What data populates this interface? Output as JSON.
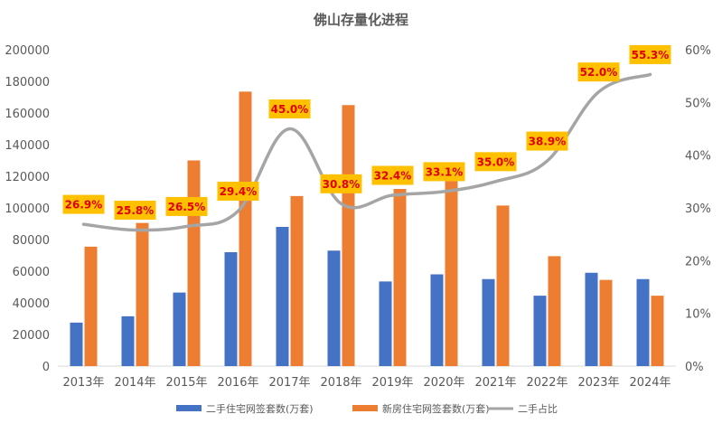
{
  "chart_data": {
    "type": "bar",
    "title": "佛山存量化进程",
    "categories": [
      "2013年",
      "2014年",
      "2015年",
      "2016年",
      "2017年",
      "2018年",
      "2019年",
      "2020年",
      "2021年",
      "2022年",
      "2023年",
      "2024年"
    ],
    "series": [
      {
        "name": "二手住宅网签套数(万套)",
        "type": "bar",
        "axis": "left",
        "color": "#4472c4",
        "values": [
          27500,
          31500,
          46500,
          72000,
          88000,
          73000,
          53500,
          58000,
          55000,
          44500,
          59000,
          55000
        ]
      },
      {
        "name": "新房住宅网签套数(万套)",
        "type": "bar",
        "axis": "left",
        "color": "#ed7d31",
        "values": [
          75500,
          90500,
          130000,
          173500,
          107500,
          165000,
          112000,
          117000,
          101500,
          69500,
          54500,
          44500
        ]
      },
      {
        "name": "二手占比",
        "type": "line",
        "axis": "right",
        "color": "#a5a5a5",
        "values": [
          26.9,
          25.8,
          26.5,
          29.4,
          45.0,
          30.8,
          32.4,
          33.1,
          35.0,
          38.9,
          52.0,
          55.3
        ],
        "labels": [
          "26.9%",
          "25.8%",
          "26.5%",
          "29.4%",
          "45.0%",
          "30.8%",
          "32.4%",
          "33.1%",
          "35.0%",
          "38.9%",
          "52.0%",
          "55.3%"
        ]
      }
    ],
    "y_left": {
      "min": 0,
      "max": 200000,
      "ticks": [
        "0",
        "20000",
        "40000",
        "60000",
        "80000",
        "100000",
        "120000",
        "140000",
        "160000",
        "180000",
        "200000"
      ]
    },
    "y_right": {
      "min": 0,
      "max": 60,
      "ticks": [
        "0%",
        "10%",
        "20%",
        "30%",
        "40%",
        "50%",
        "60%"
      ]
    },
    "label_box_color": "#ffc000",
    "legend_position": "bottom",
    "grid": false
  }
}
